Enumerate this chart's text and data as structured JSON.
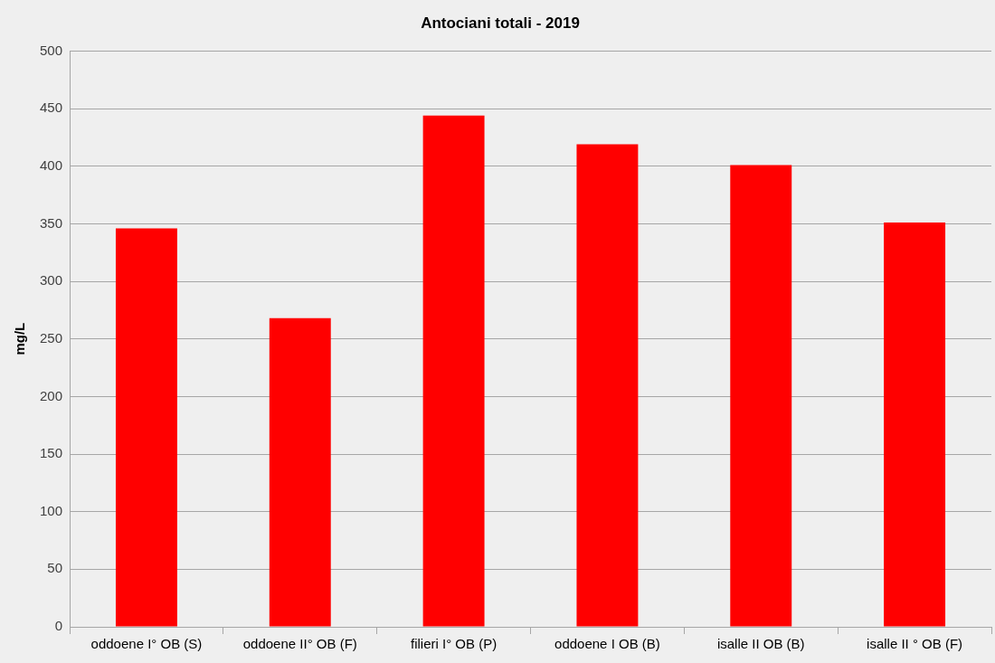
{
  "chart_data": {
    "type": "bar",
    "title": "Antociani totali - 2019",
    "ylabel": "mg/L",
    "categories": [
      "oddoene I° OB (S)",
      "oddoene II° OB (F)",
      "filieri I° OB (P)",
      "oddoene I OB (B)",
      "isalle II OB (B)",
      "isalle II ° OB (F)"
    ],
    "values": [
      346,
      268,
      444,
      419,
      401,
      351
    ],
    "color": "#ff0000",
    "ylim": [
      0,
      500
    ],
    "yticks": [
      0,
      50,
      100,
      150,
      200,
      250,
      300,
      350,
      400,
      450,
      500
    ],
    "grid": "y",
    "legend": false
  }
}
